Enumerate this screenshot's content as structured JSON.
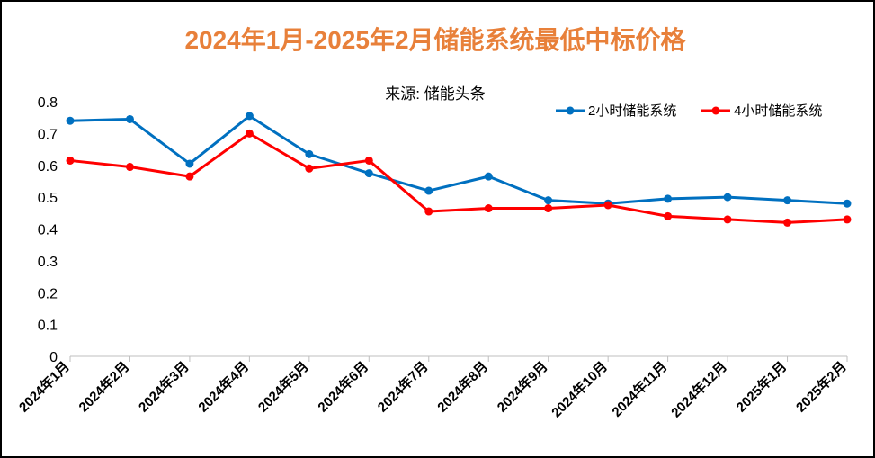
{
  "chart_data": {
    "type": "line",
    "title": "2024年1月-2025年2月储能系统最低中标价格",
    "subtitle": "来源:  储能头条",
    "categories": [
      "2024年1月",
      "2024年2月",
      "2024年3月",
      "2024年4月",
      "2024年5月",
      "2024年6月",
      "2024年7月",
      "2024年8月",
      "2024年9月",
      "2024年10月",
      "2024年11月",
      "2024年12月",
      "2025年1月",
      "2025年2月"
    ],
    "series": [
      {
        "name": "2小时储能系统",
        "color": "#0070C0",
        "values": [
          0.74,
          0.745,
          0.605,
          0.755,
          0.635,
          0.575,
          0.52,
          0.565,
          0.49,
          0.48,
          0.495,
          0.5,
          0.49,
          0.48
        ]
      },
      {
        "name": "4小时储能系统",
        "color": "#FF0000",
        "values": [
          0.615,
          0.595,
          0.565,
          0.7,
          0.59,
          0.615,
          0.455,
          0.465,
          0.465,
          0.475,
          0.44,
          0.43,
          0.42,
          0.43
        ]
      }
    ],
    "yticks": [
      "0",
      "0.1",
      "0.2",
      "0.3",
      "0.4",
      "0.5",
      "0.6",
      "0.7",
      "0.8"
    ],
    "ylim": [
      0,
      0.8
    ],
    "legend_position": "top-right",
    "grid": false,
    "title_color": "#E8803A"
  }
}
